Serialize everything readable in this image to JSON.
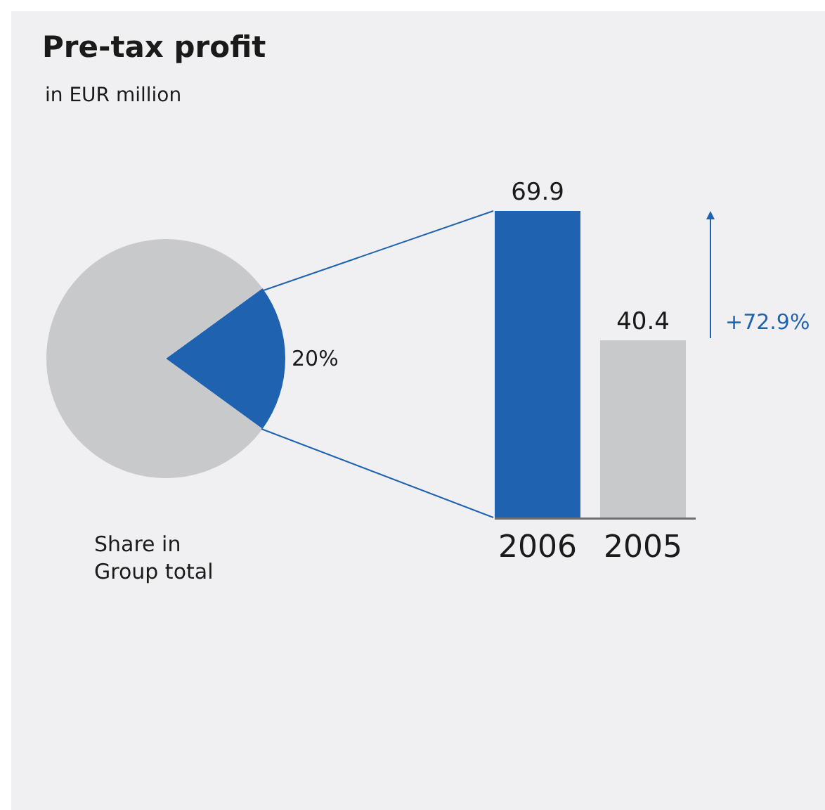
{
  "chart_data": [
    {
      "type": "pie",
      "title": "Pre-tax profit",
      "subtitle": "in EUR million",
      "categories": [
        null,
        null
      ],
      "values": [
        20,
        80
      ],
      "colors": [
        "#1f63b0",
        "#c8c9cb"
      ],
      "value_labels": [
        "20%",
        null
      ],
      "annotations": [
        "Share in Group total"
      ]
    },
    {
      "type": "bar",
      "categories": [
        "2006",
        "2005"
      ],
      "values": [
        69.9,
        40.4
      ],
      "colors": [
        "#1f63b0",
        "#c8c9cb"
      ],
      "data_labels": true,
      "tick_labels": "x",
      "annotations": [
        "+72.9%"
      ]
    }
  ]
}
